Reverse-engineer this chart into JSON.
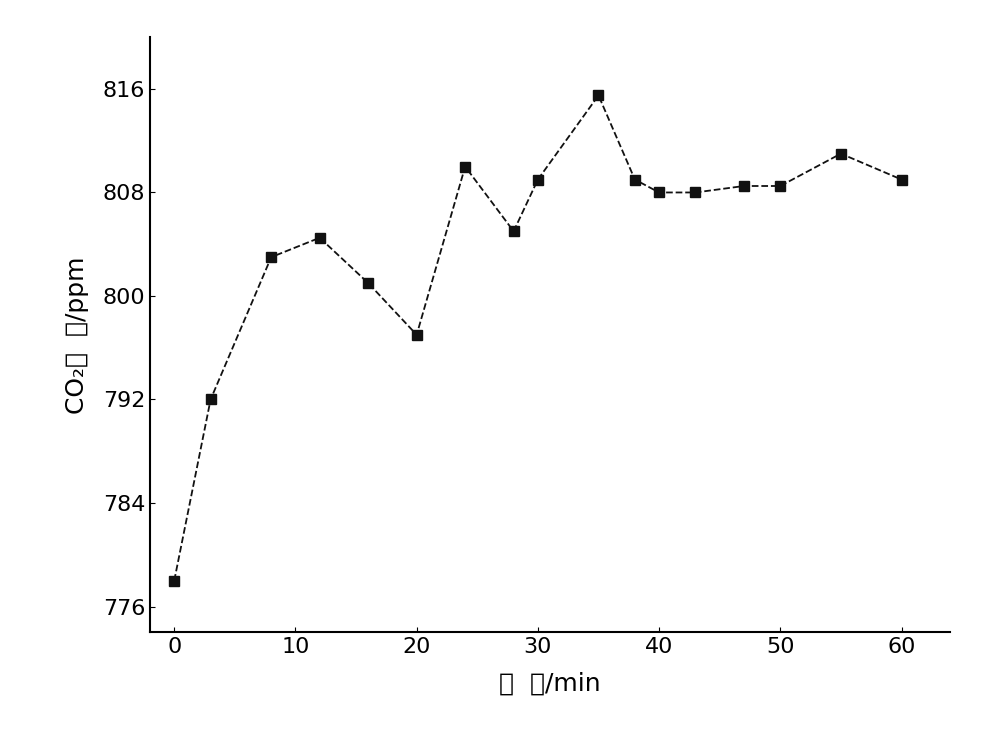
{
  "x": [
    0,
    3,
    8,
    12,
    16,
    20,
    24,
    28,
    30,
    35,
    38,
    40,
    43,
    47,
    50,
    55,
    60
  ],
  "y": [
    778.0,
    792.0,
    803.0,
    804.5,
    801.0,
    797.0,
    810.0,
    805.0,
    809.0,
    815.5,
    809.0,
    808.0,
    808.0,
    808.5,
    808.5,
    811.0,
    809.0
  ],
  "xlabel": "时  间/min",
  "ylabel": "CO₂浓  度/ppm",
  "xlim": [
    -2,
    64
  ],
  "ylim": [
    774,
    820
  ],
  "xticks": [
    0,
    10,
    20,
    30,
    40,
    50,
    60
  ],
  "yticks": [
    776,
    784,
    792,
    800,
    808,
    816
  ],
  "line_color": "#111111",
  "marker": "s",
  "marker_size": 7,
  "line_style": "--",
  "background_color": "#ffffff",
  "tick_fontsize": 16,
  "label_fontsize": 18,
  "spine_top": false,
  "spine_right": false,
  "linewidth": 1.3
}
